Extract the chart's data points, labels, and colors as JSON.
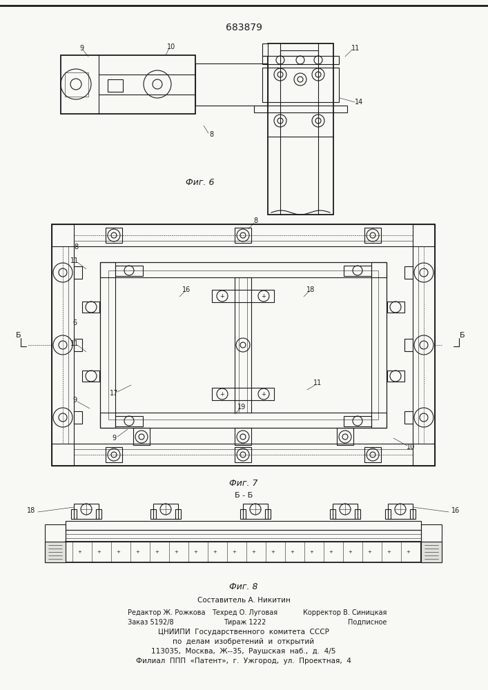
{
  "patent_number": "683879",
  "bg_color": "#f5f5f0",
  "line_color": "#2a2a2a",
  "fig6_label": "Фиг. 6",
  "fig7_label": "Фиг. 7",
  "fig8_label": "Фиг. 8",
  "section_label": "Б - Б",
  "footer_line0": "Составитель А. Никитин",
  "footer_line1a": "Редактор Ж. Рожкова",
  "footer_line1b": "Техред О. Луговая",
  "footer_line1c": "Корректор В. Синицкая",
  "footer_line2a": "Заказ 5192/8",
  "footer_line2b": "Тираж 1222",
  "footer_line2c": "Подписное",
  "footer_line3": "ЦНИИПИ  Государственного  комитета  СССР",
  "footer_line4": "по  делам  изобретений  и  открытий",
  "footer_line5": "113035,  Москва,  Ж--35,  Раушская  наб.,  д.  4/5",
  "footer_line6": "Филиал  ППП  «Патент»,  г.  Ужгород,  ул.  Проектная,  4"
}
